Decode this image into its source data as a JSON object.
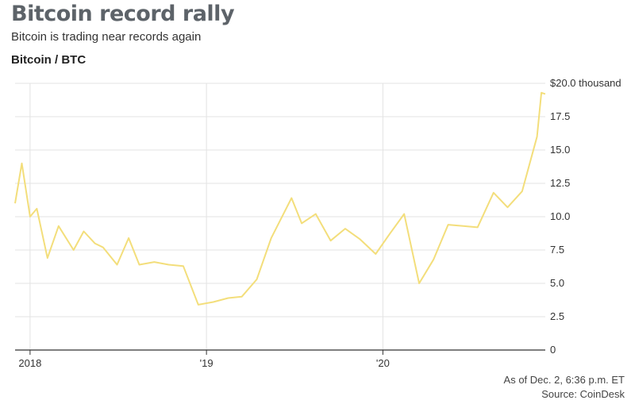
{
  "header": {
    "title": "Bitcoin record rally",
    "subtitle": "Bitcoin is trading near records again",
    "series_label": "Bitcoin / BTC"
  },
  "footer": {
    "as_of": "As of Dec. 2, 6:36 p.m. ET",
    "source": "Source: CoinDesk"
  },
  "colors": {
    "line": "#f3de7b",
    "grid": "#e3e3e3",
    "axis": "#333333"
  },
  "chart_data": {
    "type": "line",
    "title": "Bitcoin record rally",
    "subtitle": "Bitcoin is trading near records again",
    "ylabel": "",
    "xlabel": "",
    "y_unit_label": "$20.0 thousand",
    "ylim": [
      0,
      20
    ],
    "y_ticks": [
      0,
      2.5,
      5.0,
      7.5,
      10.0,
      12.5,
      15.0,
      17.5,
      20.0
    ],
    "y_tick_labels": [
      "0",
      "2.5",
      "5.0",
      "7.5",
      "10.0",
      "12.5",
      "15.0",
      "17.5",
      "$20.0 thousand"
    ],
    "x_ticks": [
      "2018-01-01",
      "2019-01-01",
      "2020-01-01"
    ],
    "x_tick_labels": [
      "2018",
      "'19",
      "'20"
    ],
    "x_range": [
      "2017-12-01",
      "2020-12-02"
    ],
    "grid": true,
    "y_axis_side": "right",
    "series": [
      {
        "x": [
          "2017-12-01",
          "2017-12-15",
          "2018-01-01",
          "2018-01-15",
          "2018-02-06",
          "2018-03-01",
          "2018-04-01",
          "2018-04-22",
          "2018-05-15",
          "2018-06-01",
          "2018-06-30",
          "2018-07-24",
          "2018-08-15",
          "2018-09-15",
          "2018-10-15",
          "2018-11-14",
          "2018-12-15",
          "2019-01-15",
          "2019-02-15",
          "2019-03-15",
          "2019-04-15",
          "2019-05-15",
          "2019-06-26",
          "2019-07-17",
          "2019-08-15",
          "2019-09-15",
          "2019-10-15",
          "2019-11-15",
          "2019-12-17",
          "2020-01-15",
          "2020-02-14",
          "2020-03-16",
          "2020-04-15",
          "2020-05-15",
          "2020-06-15",
          "2020-07-15",
          "2020-08-17",
          "2020-09-15",
          "2020-10-15",
          "2020-11-15",
          "2020-11-24",
          "2020-12-02"
        ],
        "values": [
          11.0,
          14.0,
          10.0,
          10.6,
          6.9,
          9.3,
          7.5,
          8.9,
          8.0,
          7.7,
          6.4,
          8.4,
          6.4,
          6.6,
          6.4,
          6.3,
          3.4,
          3.6,
          3.9,
          4.0,
          5.3,
          8.4,
          11.4,
          9.5,
          10.2,
          8.2,
          9.1,
          8.3,
          7.2,
          8.7,
          10.2,
          5.0,
          6.8,
          9.4,
          9.3,
          9.2,
          11.8,
          10.7,
          11.9,
          16.0,
          19.3,
          19.2
        ]
      }
    ]
  }
}
